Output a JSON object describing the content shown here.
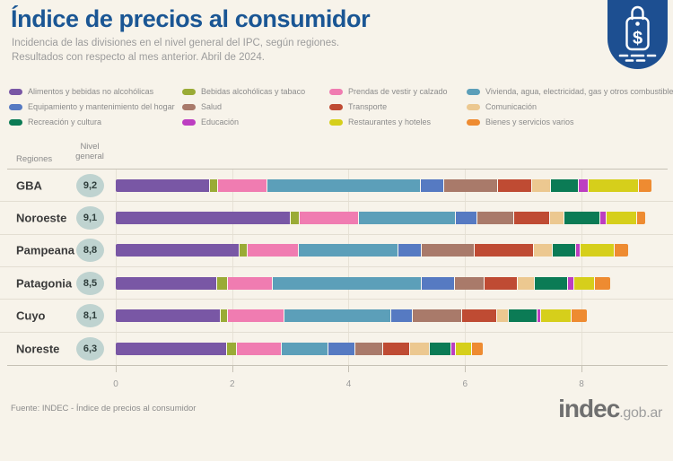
{
  "header": {
    "title": "Índice de precios al consumidor",
    "subtitle1": "Incidencia de las divisiones en el nivel general del IPC, según regiones.",
    "subtitle2": "Resultados con respecto al mes anterior. Abril de 2024."
  },
  "table": {
    "regions_header": "Regiones",
    "level_header_line1": "Nivel",
    "level_header_line2": "general"
  },
  "footer": {
    "source": "Fuente: INDEC - Índice de precios al consumidor",
    "brand": "indec",
    "brand_suffix": ".gob.ar"
  },
  "colors": {
    "background": "#F7F3EA",
    "title_blue": "#1A5694",
    "logo_blue": "#1D4F91",
    "level_circle": "#BFD3D0"
  },
  "chart_data": {
    "type": "bar",
    "variant": "horizontal-stacked",
    "title": "Índice de precios al consumidor",
    "subtitle": "Incidencia de las divisiones en el nivel general del IPC, según regiones. Resultados con respecto al mes anterior. Abril de 2024.",
    "legend_position": "top",
    "grid": true,
    "x_ticks": [
      0,
      2,
      4,
      6,
      8
    ],
    "xlim": [
      0,
      9.48
    ],
    "divisions": [
      {
        "name": "Alimentos y bebidas no alcohólicas",
        "color": "#7957A5"
      },
      {
        "name": "Bebidas alcohólicas y tabaco",
        "color": "#9AAB36"
      },
      {
        "name": "Prendas de vestir y calzado",
        "color": "#F07CB1"
      },
      {
        "name": "Vivienda, agua, electricidad, gas y otros combustibles",
        "color": "#5C9FB9"
      },
      {
        "name": "Equipamiento y mantenimiento del hogar",
        "color": "#567AC2"
      },
      {
        "name": "Salud",
        "color": "#A97A6A"
      },
      {
        "name": "Transporte",
        "color": "#BF4B33"
      },
      {
        "name": "Comunicación",
        "color": "#ECC890"
      },
      {
        "name": "Recreación y cultura",
        "color": "#0B7B55"
      },
      {
        "name": "Educación",
        "color": "#BD3EC1"
      },
      {
        "name": "Restaurantes y hoteles",
        "color": "#D6CF1B"
      },
      {
        "name": "Bienes y servicios varios",
        "color": "#EE8B31"
      }
    ],
    "legend_columns": [
      [
        0,
        4,
        8
      ],
      [
        1,
        5,
        9
      ],
      [
        2,
        6,
        10
      ],
      [
        3,
        7,
        11
      ]
    ],
    "regions": [
      {
        "name": "GBA",
        "level": "9,2",
        "level_value": 9.2,
        "values": [
          1.62,
          0.13,
          0.85,
          2.64,
          0.4,
          0.92,
          0.6,
          0.32,
          0.47,
          0.18,
          0.86,
          0.21
        ]
      },
      {
        "name": "Noroeste",
        "level": "9,1",
        "level_value": 9.1,
        "values": [
          3.0,
          0.16,
          1.02,
          1.66,
          0.37,
          0.63,
          0.62,
          0.25,
          0.62,
          0.1,
          0.52,
          0.15
        ]
      },
      {
        "name": "Pampeana",
        "level": "8,8",
        "level_value": 8.8,
        "values": [
          2.13,
          0.14,
          0.88,
          1.7,
          0.4,
          0.91,
          1.03,
          0.32,
          0.4,
          0.07,
          0.59,
          0.23
        ]
      },
      {
        "name": "Patagonia",
        "level": "8,5",
        "level_value": 8.5,
        "values": [
          1.74,
          0.18,
          0.78,
          2.56,
          0.57,
          0.5,
          0.58,
          0.29,
          0.57,
          0.11,
          0.36,
          0.26
        ]
      },
      {
        "name": "Cuyo",
        "level": "8,1",
        "level_value": 8.1,
        "values": [
          1.8,
          0.13,
          0.97,
          1.83,
          0.37,
          0.85,
          0.6,
          0.21,
          0.48,
          0.07,
          0.52,
          0.27
        ]
      },
      {
        "name": "Noreste",
        "level": "6,3",
        "level_value": 6.3,
        "values": [
          1.91,
          0.17,
          0.77,
          0.81,
          0.45,
          0.49,
          0.45,
          0.34,
          0.37,
          0.09,
          0.27,
          0.18
        ]
      }
    ]
  }
}
